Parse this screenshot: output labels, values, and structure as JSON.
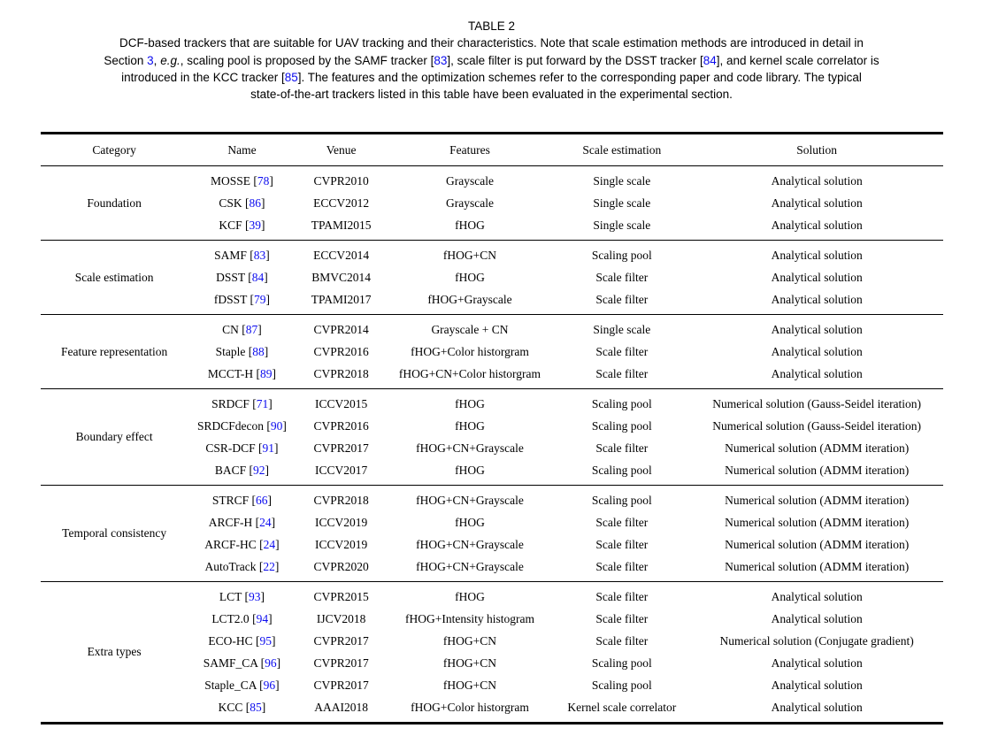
{
  "colors": {
    "citation_blue": "#0b0bee",
    "text": "#000000",
    "background": "#ffffff"
  },
  "caption": {
    "title": "TABLE 2",
    "lines": [
      [
        {
          "text": "DCF-based trackers that are suitable for UAV tracking and their characteristics. Note that scale estimation methods are introduced in detail in",
          "style": "plain"
        }
      ],
      [
        {
          "text": "Section ",
          "style": "plain"
        },
        {
          "text": "3",
          "style": "cite"
        },
        {
          "text": ", ",
          "style": "plain"
        },
        {
          "text": "e.g.",
          "style": "italic"
        },
        {
          "text": ", scaling pool is proposed by the SAMF tracker [",
          "style": "plain"
        },
        {
          "text": "83",
          "style": "cite"
        },
        {
          "text": "], scale filter is put forward by the DSST tracker [",
          "style": "plain"
        },
        {
          "text": "84",
          "style": "cite"
        },
        {
          "text": "], and kernel scale correlator is",
          "style": "plain"
        }
      ],
      [
        {
          "text": "introduced in the KCC tracker [",
          "style": "plain"
        },
        {
          "text": "85",
          "style": "cite"
        },
        {
          "text": "]. The features and the optimization schemes refer to the corresponding paper and code library. The typical",
          "style": "plain"
        }
      ],
      [
        {
          "text": "state-of-the-art trackers listed in this table have been evaluated in the experimental section.",
          "style": "plain"
        }
      ]
    ]
  },
  "table": {
    "citation_brackets": [
      " [",
      "]"
    ],
    "headers": [
      "Category",
      "Name",
      "Venue",
      "Features",
      "Scale estimation",
      "Solution"
    ],
    "groups": [
      {
        "category": "Foundation",
        "rows": [
          {
            "name": "MOSSE",
            "cite": "78",
            "venue": "CVPR2010",
            "features": "Grayscale",
            "scale": "Single scale",
            "solution": "Analytical solution"
          },
          {
            "name": "CSK",
            "cite": "86",
            "venue": "ECCV2012",
            "features": "Grayscale",
            "scale": "Single scale",
            "solution": "Analytical solution"
          },
          {
            "name": "KCF",
            "cite": "39",
            "venue": "TPAMI2015",
            "features": "fHOG",
            "scale": "Single scale",
            "solution": "Analytical solution"
          }
        ]
      },
      {
        "category": "Scale estimation",
        "rows": [
          {
            "name": "SAMF",
            "cite": "83",
            "venue": "ECCV2014",
            "features": "fHOG+CN",
            "scale": "Scaling pool",
            "solution": "Analytical solution"
          },
          {
            "name": "DSST",
            "cite": "84",
            "venue": "BMVC2014",
            "features": "fHOG",
            "scale": "Scale filter",
            "solution": "Analytical solution"
          },
          {
            "name": "fDSST",
            "cite": "79",
            "venue": "TPAMI2017",
            "features": "fHOG+Grayscale",
            "scale": "Scale filter",
            "solution": "Analytical solution"
          }
        ]
      },
      {
        "category": "Feature representation",
        "rows": [
          {
            "name": "CN",
            "cite": "87",
            "venue": "CVPR2014",
            "features": "Grayscale + CN",
            "scale": "Single scale",
            "solution": "Analytical solution"
          },
          {
            "name": "Staple",
            "cite": "88",
            "venue": "CVPR2016",
            "features": "fHOG+Color historgram",
            "scale": "Scale filter",
            "solution": "Analytical solution"
          },
          {
            "name": "MCCT-H",
            "cite": "89",
            "venue": "CVPR2018",
            "features": "fHOG+CN+Color historgram",
            "scale": "Scale filter",
            "solution": "Analytical solution"
          }
        ]
      },
      {
        "category": "Boundary effect",
        "rows": [
          {
            "name": "SRDCF",
            "cite": "71",
            "venue": "ICCV2015",
            "features": "fHOG",
            "scale": "Scaling pool",
            "solution": "Numerical solution (Gauss-Seidel iteration)"
          },
          {
            "name": "SRDCFdecon",
            "cite": "90",
            "venue": "CVPR2016",
            "features": "fHOG",
            "scale": "Scaling pool",
            "solution": "Numerical solution (Gauss-Seidel iteration)"
          },
          {
            "name": "CSR-DCF",
            "cite": "91",
            "venue": "CVPR2017",
            "features": "fHOG+CN+Grayscale",
            "scale": "Scale filter",
            "solution": "Numerical solution (ADMM iteration)"
          },
          {
            "name": "BACF",
            "cite": "92",
            "venue": "ICCV2017",
            "features": "fHOG",
            "scale": "Scaling pool",
            "solution": "Numerical solution (ADMM iteration)"
          }
        ]
      },
      {
        "category": "Temporal consistency",
        "rows": [
          {
            "name": "STRCF",
            "cite": "66",
            "venue": "CVPR2018",
            "features": "fHOG+CN+Grayscale",
            "scale": "Scaling pool",
            "solution": "Numerical solution (ADMM iteration)"
          },
          {
            "name": "ARCF-H",
            "cite": "24",
            "venue": "ICCV2019",
            "features": "fHOG",
            "scale": "Scale filter",
            "solution": "Numerical solution (ADMM iteration)"
          },
          {
            "name": "ARCF-HC",
            "cite": "24",
            "venue": "ICCV2019",
            "features": "fHOG+CN+Grayscale",
            "scale": "Scale filter",
            "solution": "Numerical solution (ADMM iteration)"
          },
          {
            "name": "AutoTrack",
            "cite": "22",
            "venue": "CVPR2020",
            "features": "fHOG+CN+Grayscale",
            "scale": "Scale filter",
            "solution": "Numerical solution (ADMM iteration)"
          }
        ]
      },
      {
        "category": "Extra types",
        "rows": [
          {
            "name": "LCT",
            "cite": "93",
            "venue": "CVPR2015",
            "features": "fHOG",
            "scale": "Scale filter",
            "solution": "Analytical solution"
          },
          {
            "name": "LCT2.0",
            "cite": "94",
            "venue": "IJCV2018",
            "features": "fHOG+Intensity histogram",
            "scale": "Scale filter",
            "solution": "Analytical solution"
          },
          {
            "name": "ECO-HC",
            "cite": "95",
            "venue": "CVPR2017",
            "features": "fHOG+CN",
            "scale": "Scale filter",
            "solution": "Numerical solution (Conjugate gradient)"
          },
          {
            "name": "SAMF_CA",
            "cite": "96",
            "venue": "CVPR2017",
            "features": "fHOG+CN",
            "scale": "Scaling pool",
            "solution": "Analytical solution"
          },
          {
            "name": "Staple_CA",
            "cite": "96",
            "venue": "CVPR2017",
            "features": "fHOG+CN",
            "scale": "Scaling pool",
            "solution": "Analytical solution"
          },
          {
            "name": "KCC",
            "cite": "85",
            "venue": "AAAI2018",
            "features": "fHOG+Color historgram",
            "scale": "Kernel scale correlator",
            "solution": "Analytical solution"
          }
        ]
      }
    ]
  }
}
